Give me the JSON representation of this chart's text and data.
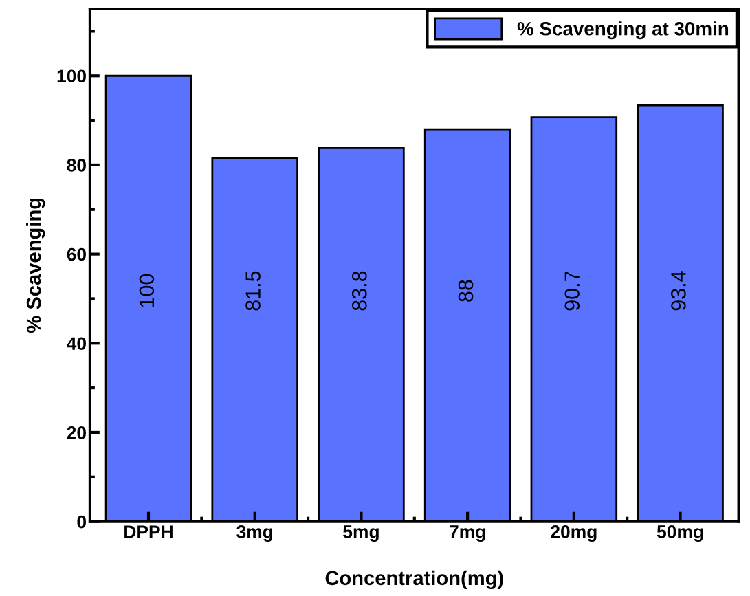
{
  "chart_data": {
    "type": "bar",
    "xlabel": "Concentration(mg)",
    "ylabel": "% Scavenging",
    "categories": [
      "DPPH",
      "3mg",
      "5mg",
      "7mg",
      "20mg",
      "50mg"
    ],
    "series": [
      {
        "name": "% Scavenging at 30min",
        "color": "#5a73ff",
        "values": [
          100,
          81.5,
          83.8,
          88,
          90.7,
          93.4
        ]
      }
    ],
    "ylim": [
      0,
      115
    ],
    "yticks": [
      0,
      20,
      40,
      60,
      80,
      100
    ],
    "data_labels": true,
    "legend": "top right",
    "grid": false
  }
}
